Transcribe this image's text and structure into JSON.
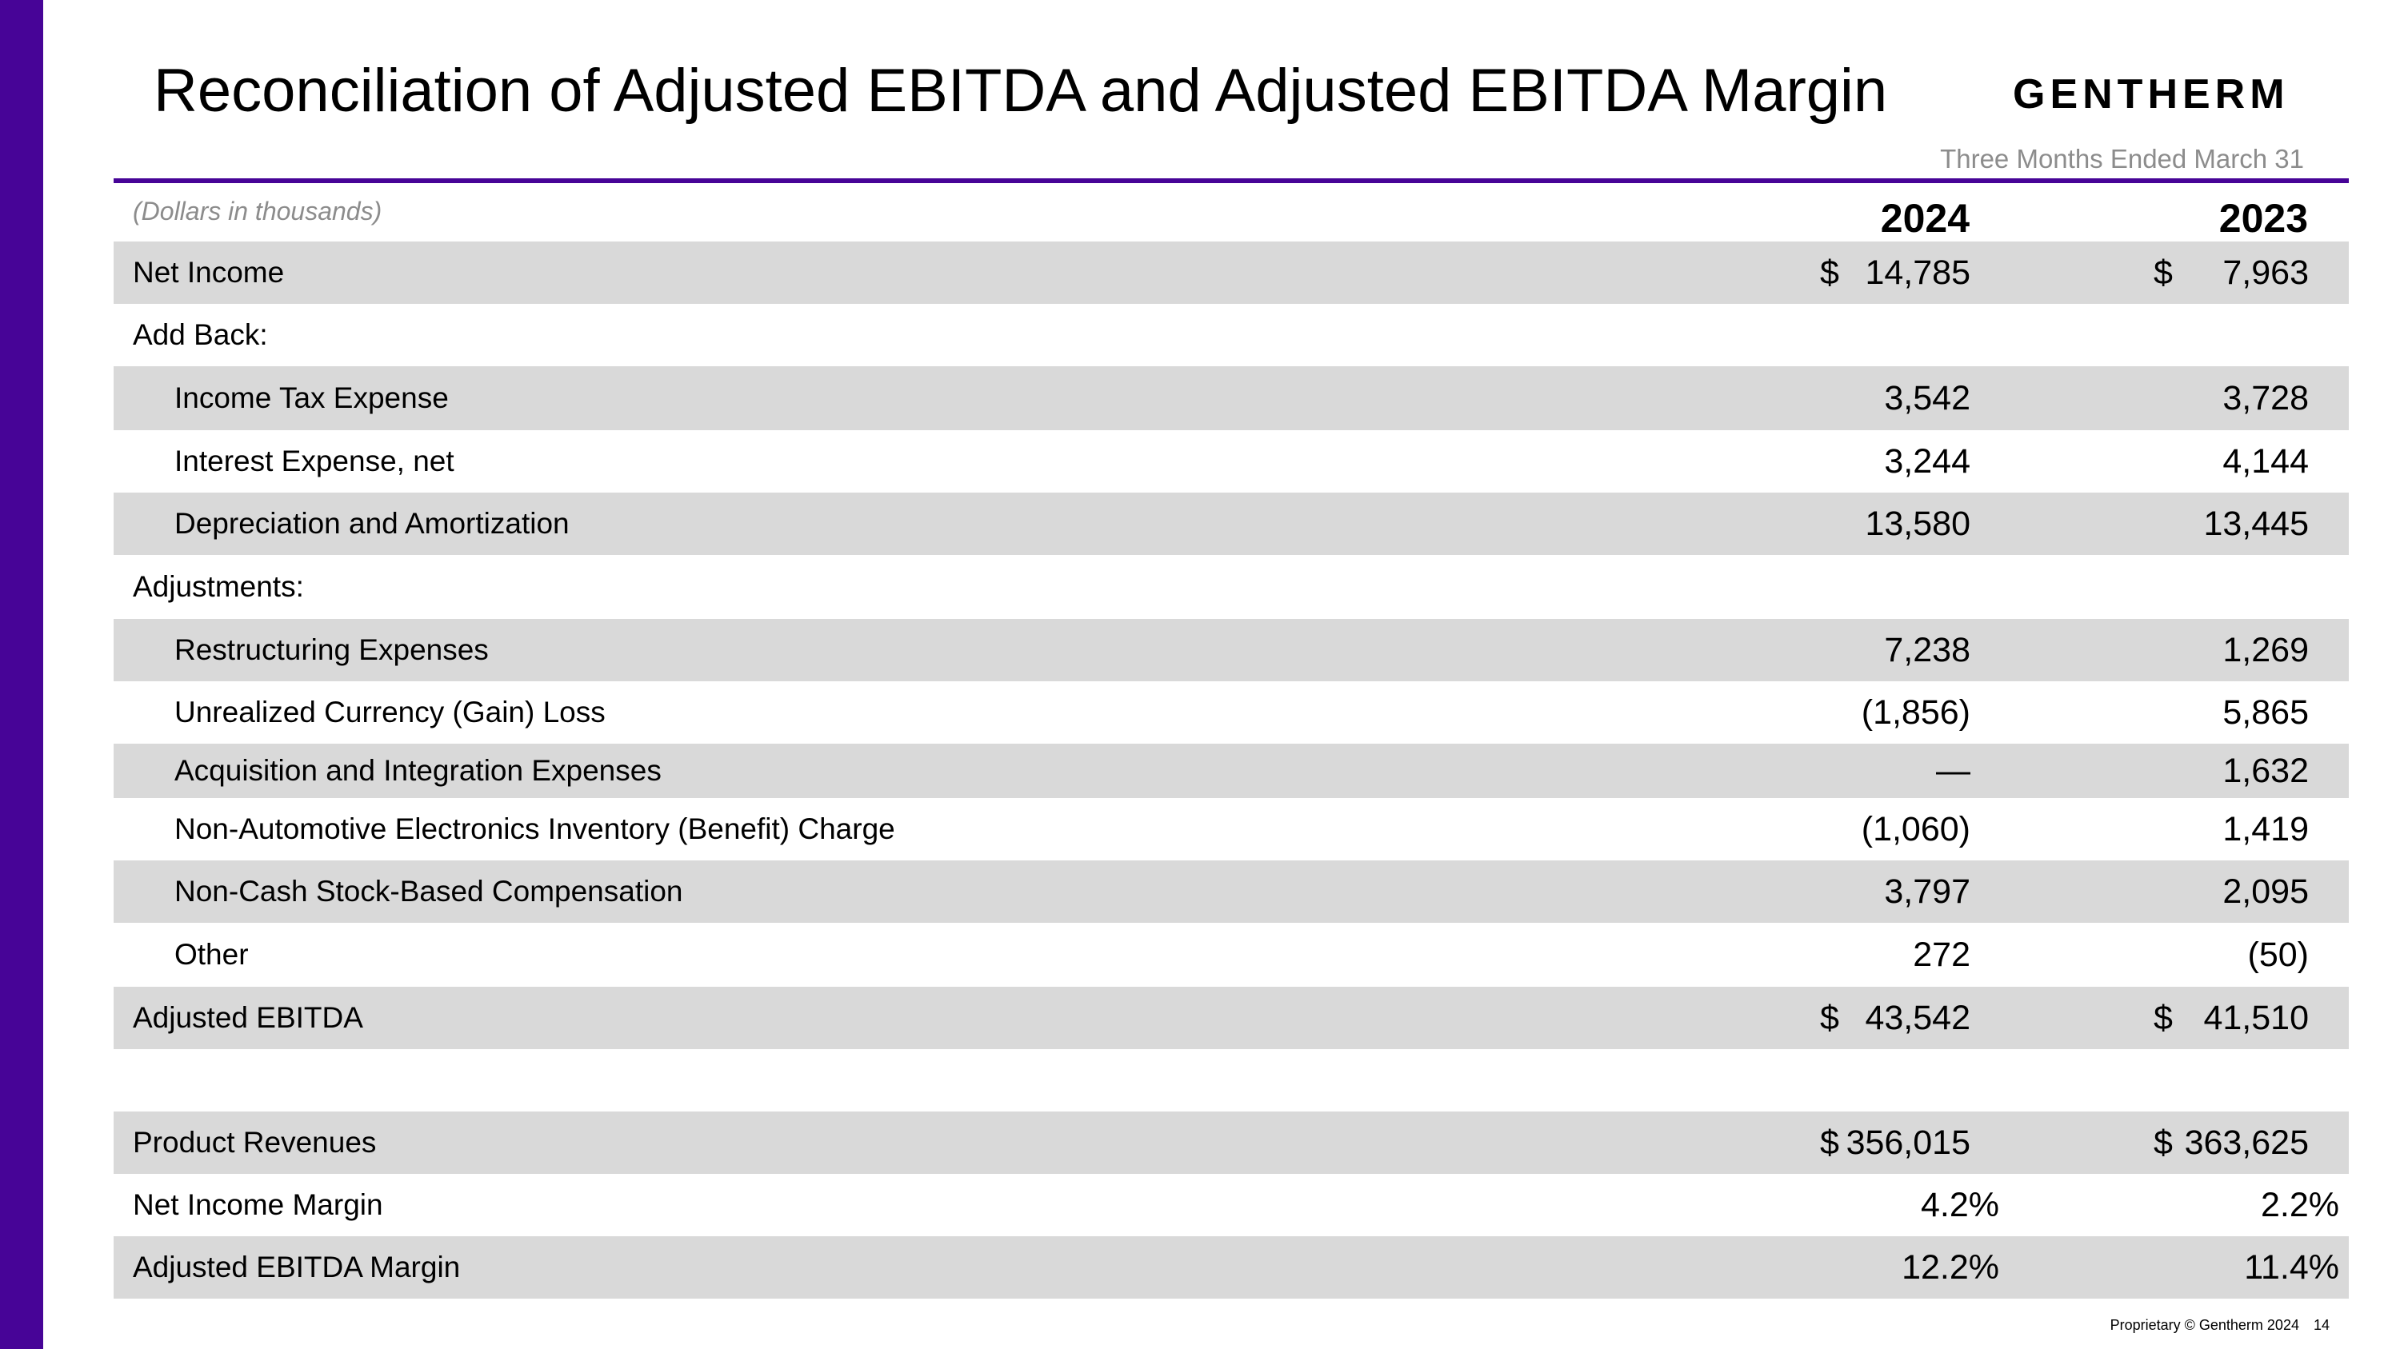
{
  "header": {
    "title": "Reconciliation of Adjusted EBITDA and Adjusted EBITDA Margin",
    "logo": "GENTHERM",
    "period": "Three Months Ended March 31",
    "units": "(Dollars in thousands)",
    "years": [
      "2024",
      "2023"
    ]
  },
  "rows": [
    {
      "label": "Net Income",
      "v1": "14,785",
      "v2": "7,963",
      "dollar": "$"
    },
    {
      "label": "Add Back:",
      "v1": "",
      "v2": ""
    },
    {
      "label": "Income Tax Expense",
      "v1": "3,542",
      "v2": "3,728"
    },
    {
      "label": "Interest Expense, net",
      "v1": "3,244",
      "v2": "4,144"
    },
    {
      "label": "Depreciation and Amortization",
      "v1": "13,580",
      "v2": "13,445"
    },
    {
      "label": "Adjustments:",
      "v1": "",
      "v2": ""
    },
    {
      "label": "Restructuring Expenses",
      "v1": "7,238",
      "v2": "1,269"
    },
    {
      "label": "Unrealized Currency (Gain) Loss",
      "v1": "(1,856)",
      "v2": "5,865"
    },
    {
      "label": "Acquisition and Integration Expenses",
      "v1": "—",
      "v2": "1,632"
    },
    {
      "label": "Non-Automotive Electronics Inventory (Benefit) Charge",
      "v1": "(1,060)",
      "v2": "1,419"
    },
    {
      "label": "Non-Cash Stock-Based Compensation",
      "v1": "3,797",
      "v2": "2,095"
    },
    {
      "label": "Other",
      "v1": "272",
      "v2": "(50)"
    },
    {
      "label": "Adjusted EBITDA",
      "v1": "43,542",
      "v2": "41,510",
      "dollar": "$"
    },
    {
      "label": "Product Revenues",
      "v1": "356,015",
      "v2": "363,625",
      "dollar": "$"
    },
    {
      "label": "Net Income Margin",
      "v1": "4.2%",
      "v2": "2.2%"
    },
    {
      "label": "Adjusted EBITDA Margin",
      "v1": "12.2%",
      "v2": "11.4%"
    }
  ],
  "footer": {
    "text": "Proprietary © Gentherm 2024",
    "page": "14"
  },
  "colors": {
    "accent": "#470497",
    "shade": "#d9d9d9",
    "muted": "#8c8c8c"
  }
}
